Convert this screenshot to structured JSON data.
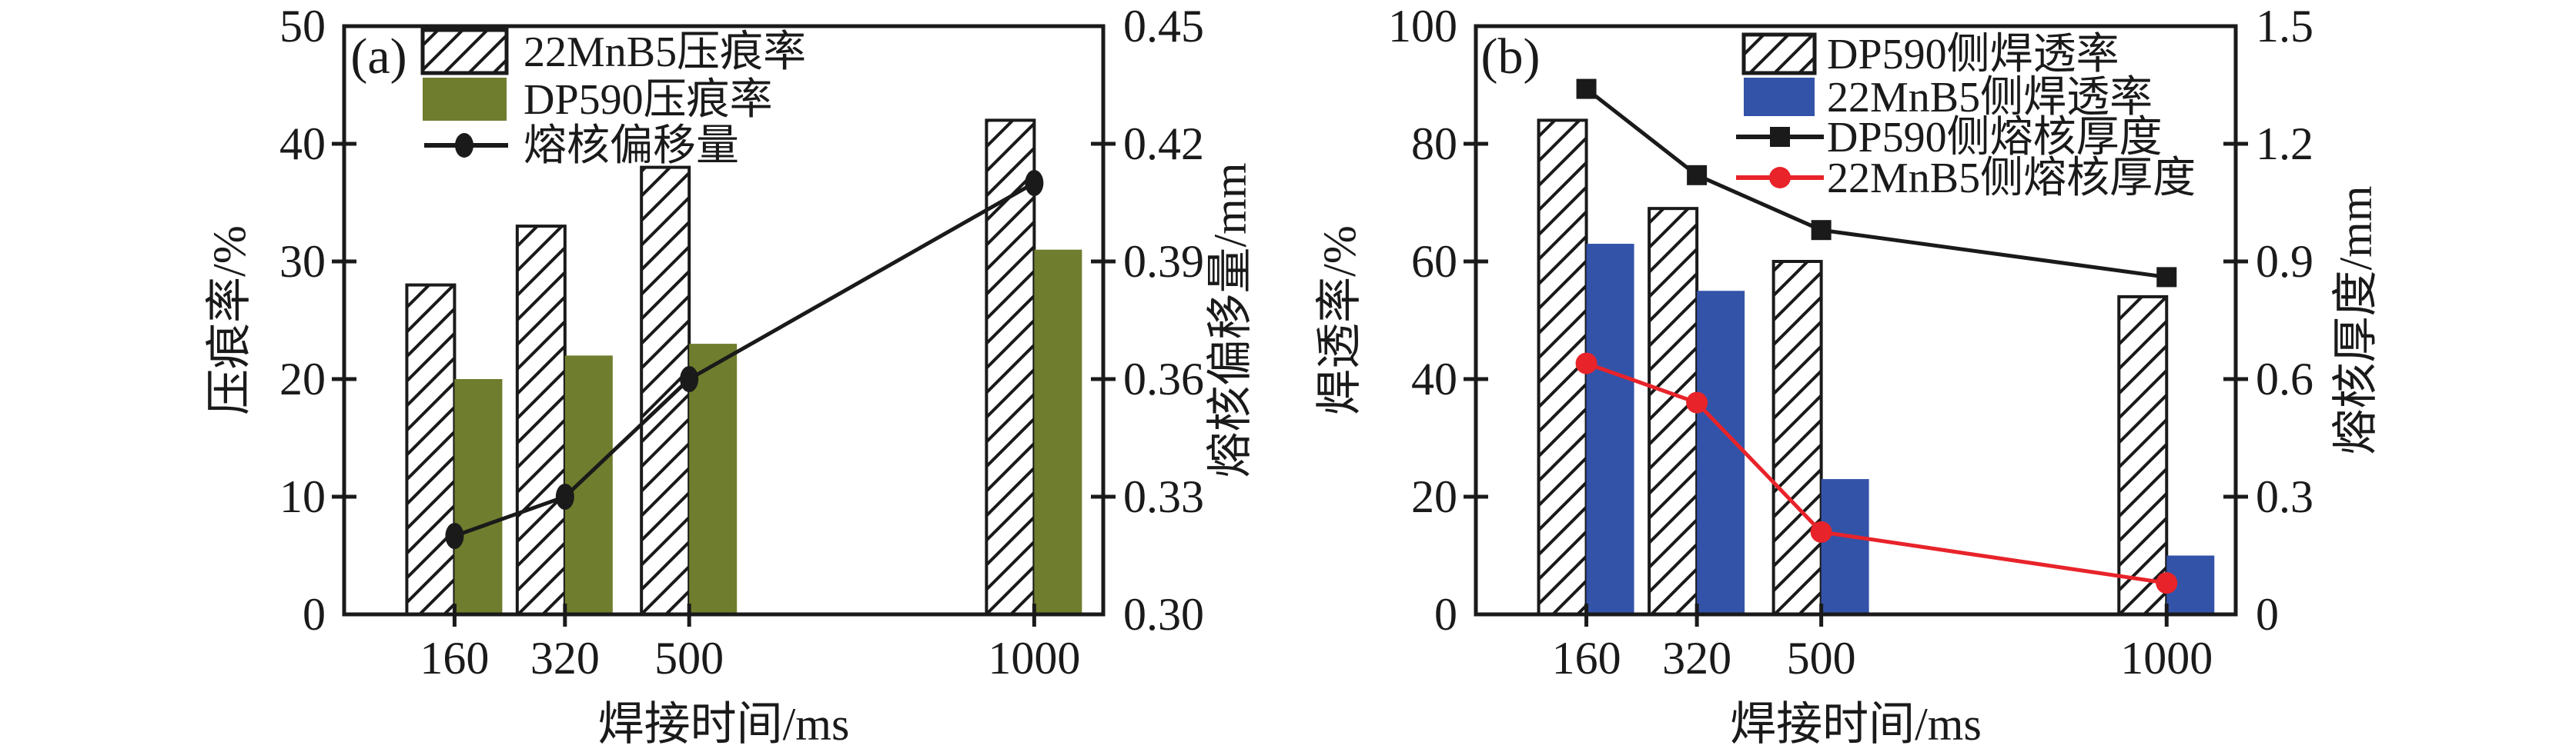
{
  "figure": {
    "background": "#ffffff",
    "ink_color": "#1a1a1a",
    "chart_data": [
      {
        "type": "bar",
        "panel_label": "(a)",
        "xlabel": "焊接时间/ms",
        "ylabel_left": "压痕率/%",
        "ylabel_right": "熔核偏移量/mm",
        "categories": [
          160,
          320,
          500,
          1000
        ],
        "x_domain": [
          0,
          1100
        ],
        "left_axis": {
          "min": 0,
          "max": 50,
          "ticks": [
            "0",
            "10",
            "20",
            "30",
            "40",
            "50"
          ]
        },
        "right_axis": {
          "min": 0.3,
          "max": 0.45,
          "ticks": [
            "0.30",
            "0.33",
            "0.36",
            "0.39",
            "0.42",
            "0.45"
          ]
        },
        "grid": "off",
        "legend_position": "top-left-inside",
        "series": [
          {
            "name": "22MnB5压痕率",
            "type": "bar",
            "fill": "hatch",
            "stroke": "#1a1a1a",
            "axis": "left",
            "values": [
              28,
              33,
              38,
              42
            ]
          },
          {
            "name": "DP590压痕率",
            "type": "bar",
            "fill": "#6f7d2e",
            "stroke": "none",
            "axis": "left",
            "values": [
              20,
              22,
              23,
              31
            ]
          },
          {
            "name": "熔核偏移量",
            "type": "line",
            "marker": "ellipse",
            "color": "#1a1a1a",
            "axis": "right",
            "values": [
              0.32,
              0.33,
              0.36,
              0.41
            ]
          }
        ]
      },
      {
        "type": "bar",
        "panel_label": "(b)",
        "xlabel": "焊接时间/ms",
        "ylabel_left": "焊透率/%",
        "ylabel_right": "熔核厚度/mm",
        "categories": [
          160,
          320,
          500,
          1000
        ],
        "x_domain": [
          0,
          1100
        ],
        "left_axis": {
          "min": 0,
          "max": 100,
          "ticks": [
            "0",
            "20",
            "40",
            "60",
            "80",
            "100"
          ]
        },
        "right_axis": {
          "min": 0,
          "max": 1.5,
          "ticks": [
            "0",
            "0.3",
            "0.6",
            "0.9",
            "1.2",
            "1.5"
          ]
        },
        "grid": "off",
        "legend_position": "top-right-inside",
        "series": [
          {
            "name": "DP590侧焊透率",
            "type": "bar",
            "fill": "hatch",
            "stroke": "#1a1a1a",
            "axis": "left",
            "values": [
              84,
              69,
              60,
              54
            ]
          },
          {
            "name": "22MnB5侧焊透率",
            "type": "bar",
            "fill": "#3353a8",
            "stroke": "none",
            "axis": "left",
            "values": [
              63,
              55,
              23,
              10
            ]
          },
          {
            "name": "DP590侧熔核厚度",
            "type": "line",
            "marker": "square",
            "color": "#1a1a1a",
            "axis": "right",
            "values": [
              1.34,
              1.12,
              0.98,
              0.86
            ]
          },
          {
            "name": "22MnB5侧熔核厚度",
            "type": "line",
            "marker": "circle",
            "color": "#e8232a",
            "axis": "right",
            "values": [
              0.64,
              0.54,
              0.21,
              0.08
            ]
          }
        ]
      }
    ]
  }
}
